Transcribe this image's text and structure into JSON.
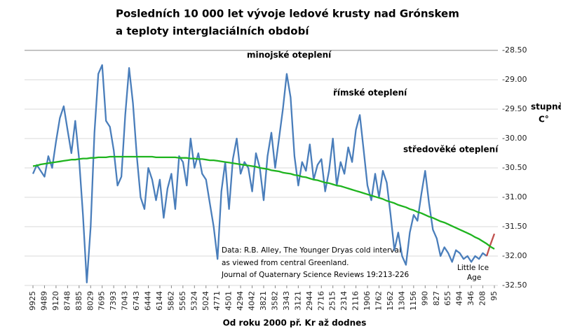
{
  "chart_data": {
    "type": "line",
    "title": [
      "Posledních 10 000 let vývoje ledové krusty nad Grónskem",
      "a teploty interglaciálních období"
    ],
    "x_label": "Od roku 2000 př. Kr až dodnes",
    "y_label": [
      "stupně",
      "C°"
    ],
    "y_axis_side": "right",
    "grid": true,
    "annotations": [
      "minojské oteplení",
      "římské oteplení",
      "středověké oteplení",
      "Little Ice",
      "Age"
    ],
    "note": [
      "Data: R.B. Alley,  The Younger Dryas cold interval",
      " as viewed from central Greenland.",
      "Journal of Quaternary  Science Reviews 19:213-226"
    ],
    "ylim": [
      -32.5,
      -28.5
    ],
    "yticks": [
      {
        "value": -28.5,
        "label": "-28.50"
      },
      {
        "value": -29,
        "label": "-29.00"
      },
      {
        "value": -29.5,
        "label": "-29.50"
      },
      {
        "value": -30,
        "label": "-30.00"
      },
      {
        "value": -30.5,
        "label": "-30.50"
      },
      {
        "value": -31,
        "label": "-31.00"
      },
      {
        "value": -31.5,
        "label": "-31.50"
      },
      {
        "value": -32,
        "label": "-32.00"
      },
      {
        "value": -32.5,
        "label": "-32.50"
      }
    ],
    "categories": [
      "9925",
      null,
      null,
      "9489",
      null,
      null,
      "9120",
      null,
      null,
      "8748",
      null,
      null,
      "8385",
      null,
      null,
      "8029",
      null,
      null,
      "7695",
      null,
      null,
      "7393",
      null,
      null,
      "7043",
      null,
      null,
      "6743",
      null,
      null,
      "6444",
      null,
      null,
      "6144",
      null,
      null,
      "5862",
      null,
      null,
      "5565",
      null,
      null,
      "5324",
      null,
      null,
      "5024",
      null,
      null,
      "4771",
      null,
      null,
      "4501",
      null,
      null,
      "4294",
      null,
      null,
      "4042",
      null,
      null,
      "3821",
      null,
      null,
      "3582",
      null,
      null,
      "3343",
      null,
      null,
      "3121",
      null,
      null,
      "2944",
      null,
      null,
      "2716",
      null,
      null,
      "2515",
      null,
      null,
      "2314",
      null,
      null,
      "2116",
      null,
      null,
      "1906",
      null,
      null,
      "1762",
      null,
      null,
      "1562",
      null,
      null,
      "1304",
      null,
      null,
      "1156",
      null,
      null,
      "990",
      null,
      null,
      "827",
      null,
      null,
      "655",
      null,
      null,
      "494",
      null,
      null,
      "346",
      null,
      null,
      "208",
      null,
      null,
      "95"
    ],
    "series": [
      {
        "color": "#4a7ebb",
        "values": [
          -30.6,
          -30.45,
          -30.55,
          -30.65,
          -30.3,
          -30.5,
          -30.05,
          -29.65,
          -29.45,
          -29.85,
          -30.25,
          -29.7,
          -30.35,
          -31.3,
          -32.45,
          -31.5,
          -29.9,
          -28.9,
          -28.75,
          -29.7,
          -29.8,
          -30.2,
          -30.8,
          -30.65,
          -29.6,
          -28.8,
          -29.4,
          -30.3,
          -31.0,
          -31.2,
          -30.5,
          -30.7,
          -31.05,
          -30.7,
          -31.35,
          -30.85,
          -30.6,
          -31.2,
          -30.3,
          -30.4,
          -30.8,
          -30.0,
          -30.5,
          -30.25,
          -30.6,
          -30.7,
          -31.1,
          -31.5,
          -32.05,
          -30.9,
          -30.4,
          -31.2,
          -30.35,
          -30.0,
          -30.6,
          -30.4,
          -30.5,
          -30.9,
          -30.25,
          -30.5,
          -31.05,
          -30.3,
          -29.9,
          -30.5,
          -30.0,
          -29.5,
          -28.9,
          -29.3,
          -30.3,
          -30.8,
          -30.4,
          -30.55,
          -30.1,
          -30.7,
          -30.45,
          -30.35,
          -30.9,
          -30.55,
          -30.0,
          -30.8,
          -30.4,
          -30.6,
          -30.15,
          -30.4,
          -29.85,
          -29.6,
          -30.2,
          -30.8,
          -31.05,
          -30.6,
          -31.0,
          -30.55,
          -30.75,
          -31.3,
          -31.9,
          -31.6,
          -32.0,
          -32.15,
          -31.6,
          -31.3,
          -31.4,
          -30.95,
          -30.55,
          -31.1,
          -31.55,
          -31.7,
          -32.0,
          -31.85,
          -31.95,
          -32.1,
          -31.9,
          -31.95,
          -32.05,
          -32.0,
          -32.1,
          -32.0,
          -32.05,
          -31.95,
          -32.0,
          null,
          null
        ]
      },
      {
        "color": "#c0504d",
        "values": [
          null,
          null,
          null,
          null,
          null,
          null,
          null,
          null,
          null,
          null,
          null,
          null,
          null,
          null,
          null,
          null,
          null,
          null,
          null,
          null,
          null,
          null,
          null,
          null,
          null,
          null,
          null,
          null,
          null,
          null,
          null,
          null,
          null,
          null,
          null,
          null,
          null,
          null,
          null,
          null,
          null,
          null,
          null,
          null,
          null,
          null,
          null,
          null,
          null,
          null,
          null,
          null,
          null,
          null,
          null,
          null,
          null,
          null,
          null,
          null,
          null,
          null,
          null,
          null,
          null,
          null,
          null,
          null,
          null,
          null,
          null,
          null,
          null,
          null,
          null,
          null,
          null,
          null,
          null,
          null,
          null,
          null,
          null,
          null,
          null,
          null,
          null,
          null,
          null,
          null,
          null,
          null,
          null,
          null,
          null,
          null,
          null,
          null,
          null,
          null,
          null,
          null,
          null,
          null,
          null,
          null,
          null,
          null,
          null,
          null,
          null,
          null,
          null,
          null,
          null,
          null,
          null,
          null,
          -32.0,
          -31.8,
          -31.62
        ]
      },
      {
        "color": "#1fb41f",
        "values": [
          -30.47,
          -30.46,
          -30.44,
          -30.43,
          -30.42,
          -30.41,
          -30.4,
          -30.39,
          -30.38,
          -30.37,
          -30.36,
          -30.36,
          -30.35,
          -30.34,
          -30.34,
          -30.33,
          -30.33,
          -30.32,
          -30.32,
          -30.32,
          -30.31,
          -30.31,
          -30.31,
          -30.31,
          -30.31,
          -30.31,
          -30.31,
          -30.31,
          -30.31,
          -30.31,
          -30.31,
          -30.31,
          -30.32,
          -30.32,
          -30.32,
          -30.32,
          -30.32,
          -30.32,
          -30.33,
          -30.33,
          -30.33,
          -30.34,
          -30.34,
          -30.35,
          -30.35,
          -30.36,
          -30.37,
          -30.37,
          -30.38,
          -30.39,
          -30.4,
          -30.41,
          -30.42,
          -30.43,
          -30.44,
          -30.45,
          -30.46,
          -30.47,
          -30.48,
          -30.5,
          -30.51,
          -30.52,
          -30.54,
          -30.55,
          -30.56,
          -30.58,
          -30.59,
          -30.6,
          -30.62,
          -30.63,
          -30.65,
          -30.66,
          -30.68,
          -30.7,
          -30.71,
          -30.73,
          -30.75,
          -30.76,
          -30.78,
          -30.8,
          -30.81,
          -30.83,
          -30.85,
          -30.87,
          -30.89,
          -30.91,
          -30.93,
          -30.95,
          -30.97,
          -30.99,
          -31.01,
          -31.03,
          -31.06,
          -31.08,
          -31.1,
          -31.13,
          -31.15,
          -31.17,
          -31.2,
          -31.22,
          -31.25,
          -31.27,
          -31.3,
          -31.33,
          -31.35,
          -31.38,
          -31.41,
          -31.43,
          -31.46,
          -31.49,
          -31.52,
          -31.55,
          -31.58,
          -31.61,
          -31.64,
          -31.68,
          -31.71,
          -31.75,
          -31.79,
          -31.84,
          -31.88
        ]
      }
    ]
  }
}
